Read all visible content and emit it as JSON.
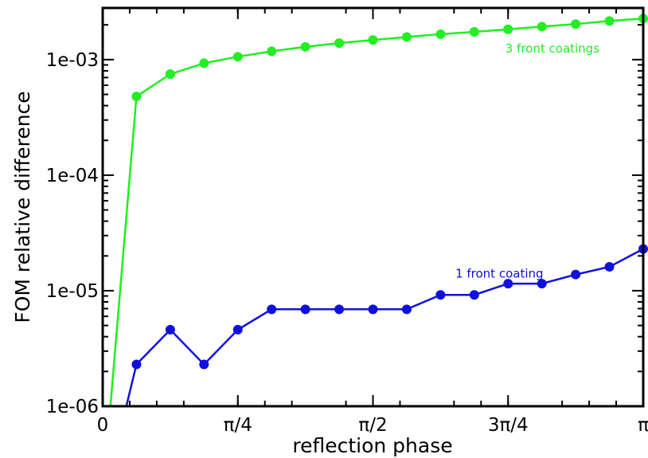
{
  "chart_data": {
    "type": "line",
    "title": "",
    "xlabel": "reflection phase",
    "ylabel": "FOM relative difference",
    "x_scale": "linear",
    "y_scale": "log",
    "xlim": [
      0,
      3.14159
    ],
    "ylim": [
      1e-06,
      0.003
    ],
    "grid": false,
    "x_ticks": [
      {
        "value": 0,
        "label": "0"
      },
      {
        "value": 0.785398,
        "label": "π/4"
      },
      {
        "value": 1.570796,
        "label": "π/2"
      },
      {
        "value": 2.356194,
        "label": "3π/4"
      },
      {
        "value": 3.14159,
        "label": "π"
      }
    ],
    "y_ticks": [
      {
        "value": 1e-06,
        "label": "1e-06"
      },
      {
        "value": 1e-05,
        "label": "1e-05"
      },
      {
        "value": 0.0001,
        "label": "1e-04"
      },
      {
        "value": 0.001,
        "label": "1e-03"
      }
    ],
    "series": [
      {
        "name": "3 front coatings",
        "color": "#22ee22",
        "x": [
          0.0449,
          0.1963,
          0.3927,
          0.589,
          0.7854,
          0.9817,
          1.1781,
          1.3744,
          1.5708,
          1.7671,
          1.9635,
          2.1598,
          2.3562,
          2.5525,
          2.7489,
          2.9452,
          3.1416
        ],
        "y": [
          1e-06,
          0.00048,
          0.00075,
          0.00093,
          0.00106,
          0.00118,
          0.00129,
          0.00139,
          0.00148,
          0.00157,
          0.00166,
          0.00174,
          0.00183,
          0.00193,
          0.00203,
          0.00216,
          0.00227
        ],
        "markers_from_index": 1,
        "label_anchor": {
          "x": 2.34,
          "y": 0.00115
        }
      },
      {
        "name": "1 front coating",
        "color": "#1010dd",
        "x": [
          0.1374,
          0.1963,
          0.3927,
          0.589,
          0.7854,
          0.9817,
          1.1781,
          1.3744,
          1.5708,
          1.7671,
          1.9635,
          2.1598,
          2.3562,
          2.5525,
          2.7489,
          2.9452,
          3.1416
        ],
        "y": [
          1e-06,
          2.3e-06,
          4.6e-06,
          2.3e-06,
          4.6e-06,
          6.9e-06,
          6.9e-06,
          6.9e-06,
          6.9e-06,
          6.9e-06,
          9.2e-06,
          9.2e-06,
          1.15e-05,
          1.15e-05,
          1.38e-05,
          1.61e-05,
          2.3e-05
        ],
        "markers_from_index": 1,
        "label_anchor": {
          "x": 2.05,
          "y": 1.3e-05
        }
      }
    ]
  }
}
